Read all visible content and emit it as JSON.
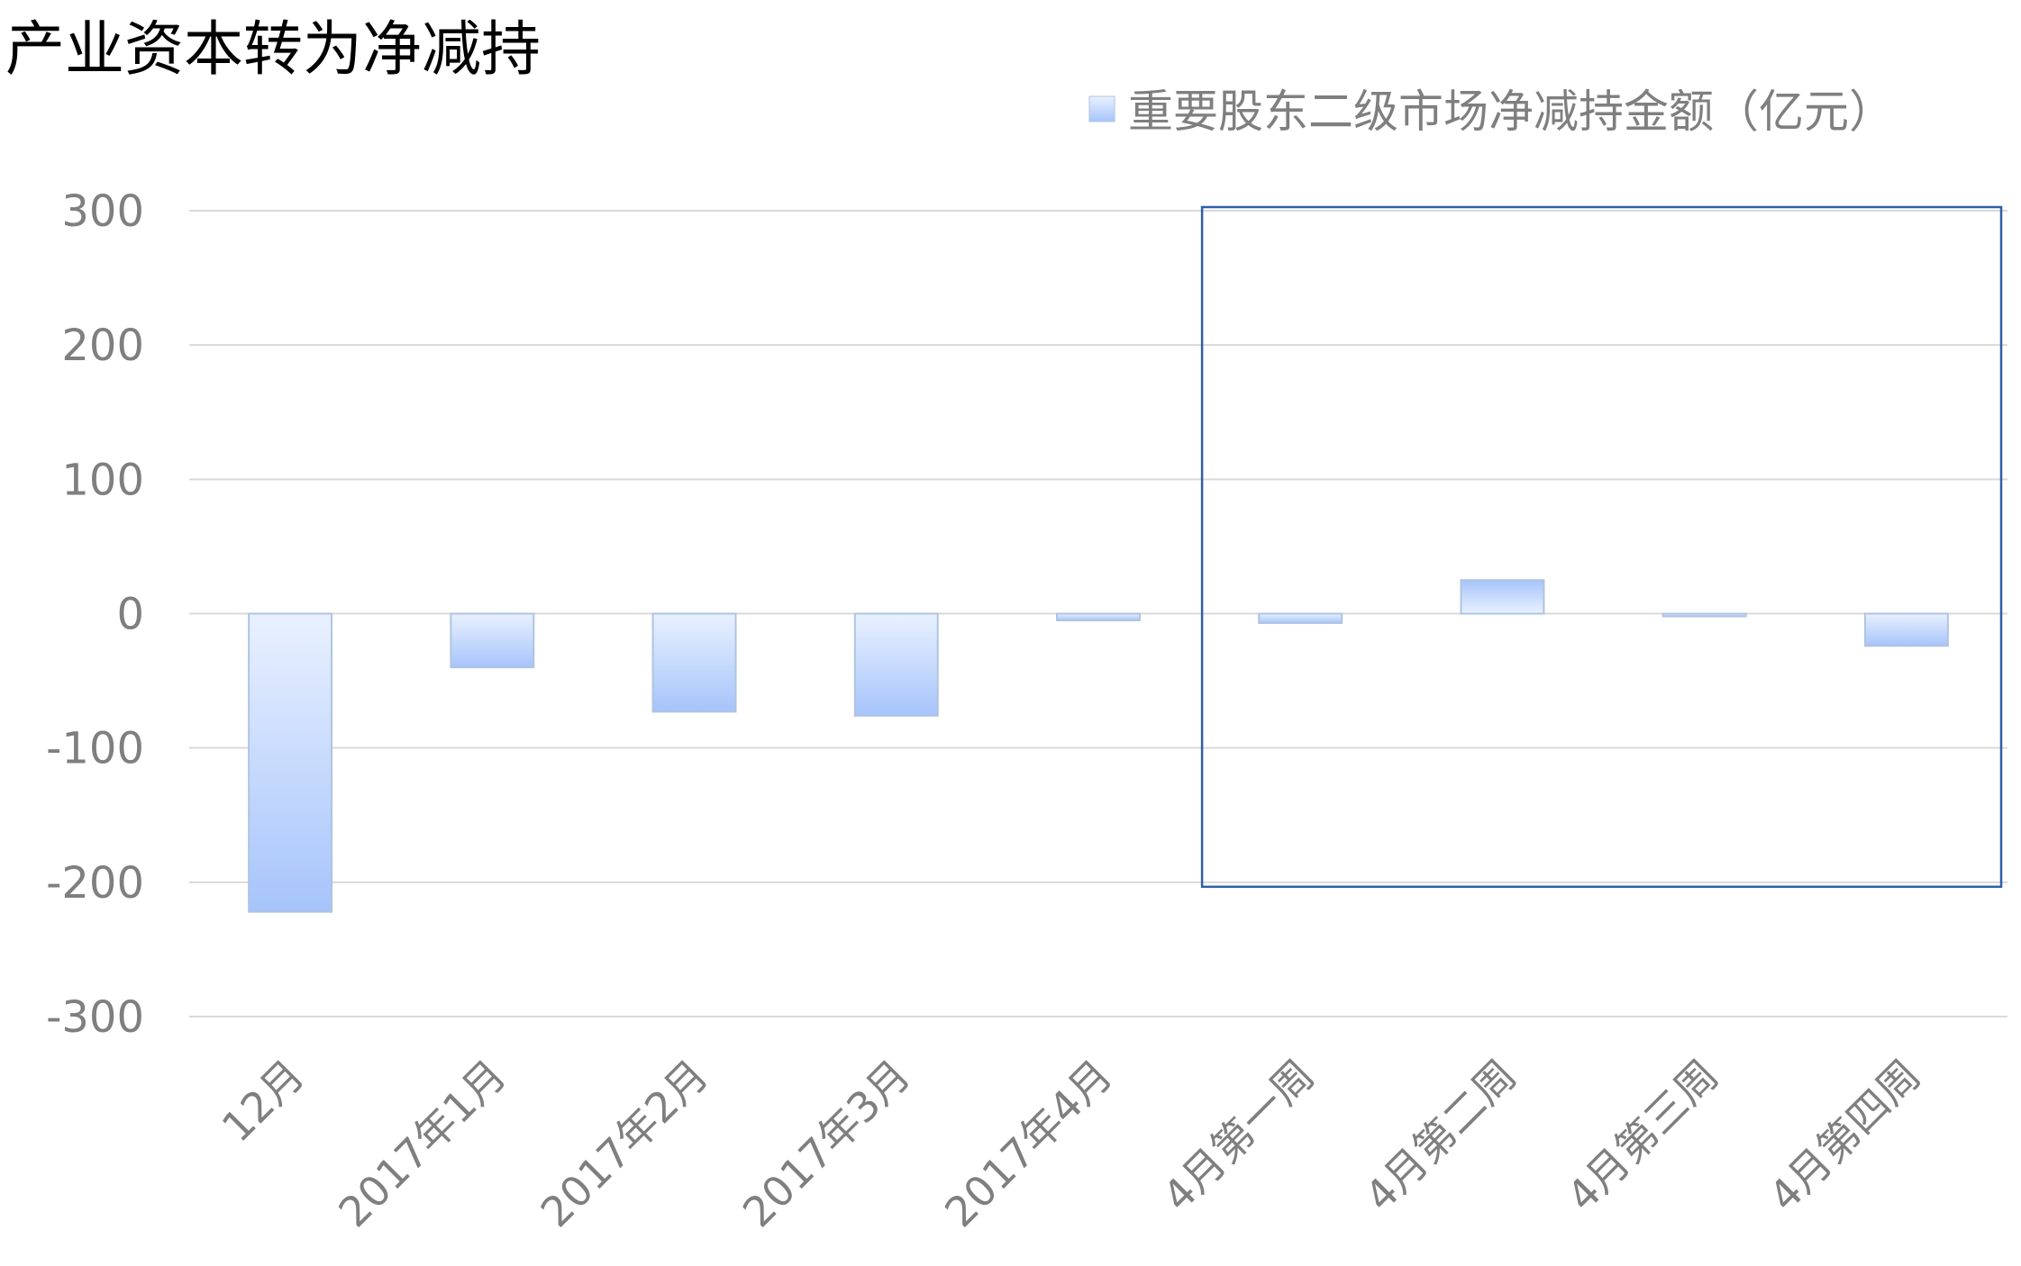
{
  "chart_data": {
    "type": "bar",
    "title": "产业资本转为净减持",
    "legend": {
      "position": "top-right",
      "entries": [
        "重要股东二级市场净减持金额（亿元）"
      ]
    },
    "categories": [
      "12月",
      "2017年1月",
      "2017年2月",
      "2017年3月",
      "2017年4月",
      "4月第一周",
      "4月第二周",
      "4月第三周",
      "4月第四周"
    ],
    "series": [
      {
        "name": "重要股东二级市场净减持金额（亿元）",
        "values": [
          -222,
          -40,
          -73,
          -76,
          -5,
          -7,
          25,
          -2,
          -24
        ],
        "color": "#a6c4fb"
      }
    ],
    "ylim": [
      -300,
      300
    ],
    "yticks": [
      "300",
      "200",
      "100",
      "0",
      "-100",
      "-200",
      "-300"
    ],
    "grid": true,
    "highlight_range": [
      "4月第一周",
      "4月第四周"
    ],
    "highlight_color": "#2e5fa8",
    "xlabel": "",
    "ylabel": ""
  }
}
